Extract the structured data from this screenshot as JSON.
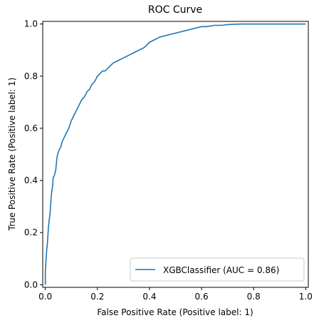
{
  "chart_data": {
    "type": "line",
    "title": "ROC Curve",
    "xlabel": "False Positive Rate (Positive label: 1)",
    "ylabel": "True Positive Rate (Positive label: 1)",
    "xlim": [
      -0.01,
      1.01
    ],
    "ylim": [
      -0.01,
      1.01
    ],
    "xticks": [
      0.0,
      0.2,
      0.4,
      0.6,
      0.8,
      1.0
    ],
    "yticks": [
      0.0,
      0.2,
      0.4,
      0.6,
      0.8,
      1.0
    ],
    "xtick_labels": [
      "0.0",
      "0.2",
      "0.4",
      "0.6",
      "0.8",
      "1.0"
    ],
    "ytick_labels": [
      "0.0",
      "0.2",
      "0.4",
      "0.6",
      "0.8",
      "1.0"
    ],
    "grid": false,
    "legend_position": "lower-right",
    "series": [
      {
        "name": "XGBClassifier (AUC = 0.86)",
        "color": "#1f77b4",
        "x": [
          0.0,
          0.0,
          0.003,
          0.005,
          0.008,
          0.01,
          0.012,
          0.015,
          0.018,
          0.02,
          0.022,
          0.025,
          0.028,
          0.03,
          0.035,
          0.04,
          0.045,
          0.05,
          0.055,
          0.06,
          0.065,
          0.07,
          0.08,
          0.09,
          0.1,
          0.11,
          0.12,
          0.13,
          0.14,
          0.15,
          0.16,
          0.17,
          0.18,
          0.19,
          0.2,
          0.21,
          0.22,
          0.23,
          0.24,
          0.25,
          0.26,
          0.28,
          0.3,
          0.32,
          0.34,
          0.36,
          0.38,
          0.4,
          0.42,
          0.44,
          0.46,
          0.48,
          0.5,
          0.52,
          0.54,
          0.56,
          0.58,
          0.6,
          0.62,
          0.65,
          0.68,
          0.7,
          0.75,
          0.8,
          0.9,
          1.0
        ],
        "y": [
          0.0,
          0.05,
          0.1,
          0.13,
          0.16,
          0.19,
          0.22,
          0.25,
          0.27,
          0.3,
          0.33,
          0.36,
          0.38,
          0.41,
          0.42,
          0.44,
          0.49,
          0.51,
          0.52,
          0.53,
          0.55,
          0.56,
          0.58,
          0.6,
          0.63,
          0.65,
          0.67,
          0.69,
          0.71,
          0.72,
          0.74,
          0.75,
          0.77,
          0.78,
          0.8,
          0.81,
          0.82,
          0.82,
          0.83,
          0.84,
          0.85,
          0.86,
          0.87,
          0.88,
          0.89,
          0.9,
          0.91,
          0.93,
          0.94,
          0.95,
          0.955,
          0.96,
          0.965,
          0.97,
          0.975,
          0.98,
          0.985,
          0.99,
          0.99,
          0.995,
          0.995,
          0.998,
          1.0,
          1.0,
          1.0,
          1.0
        ]
      }
    ]
  }
}
